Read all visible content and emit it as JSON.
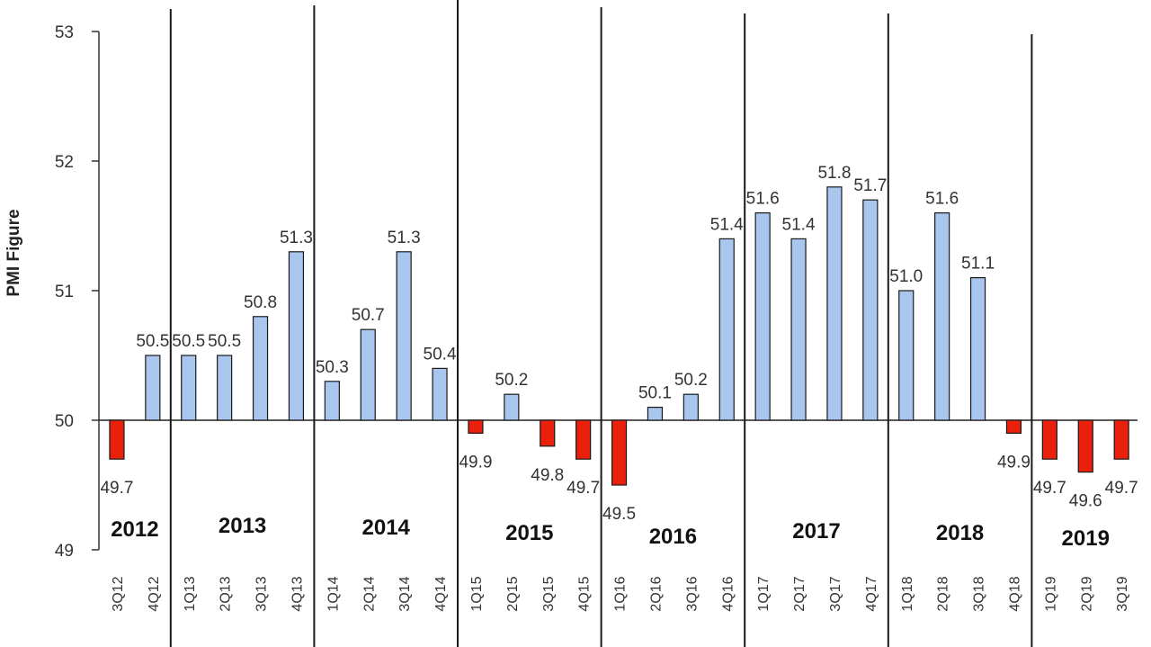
{
  "chart_data": {
    "type": "bar",
    "ylabel": "PMI Figure",
    "ylim": [
      49,
      53
    ],
    "yticks": [
      "49",
      "50",
      "51",
      "52",
      "53"
    ],
    "baseline": 50,
    "categories": [
      "3Q12",
      "4Q12",
      "1Q13",
      "2Q13",
      "3Q13",
      "4Q13",
      "1Q14",
      "2Q14",
      "3Q14",
      "4Q14",
      "1Q15",
      "2Q15",
      "3Q15",
      "4Q15",
      "1Q16",
      "2Q16",
      "3Q16",
      "4Q16",
      "1Q17",
      "2Q17",
      "3Q17",
      "4Q17",
      "1Q18",
      "2Q18",
      "3Q18",
      "4Q18",
      "1Q19",
      "2Q19",
      "3Q19"
    ],
    "values": [
      49.7,
      50.5,
      50.5,
      50.5,
      50.8,
      51.3,
      50.3,
      50.7,
      51.3,
      50.4,
      49.9,
      50.2,
      49.8,
      49.7,
      49.5,
      50.1,
      50.2,
      51.4,
      51.6,
      51.4,
      51.8,
      51.7,
      51.0,
      51.6,
      51.1,
      49.9,
      49.7,
      49.6,
      49.7
    ],
    "value_labels": [
      "49.7",
      "50.5",
      "50.5",
      "50.5",
      "50.8",
      "51.3",
      "50.3",
      "50.7",
      "51.3",
      "50.4",
      "49.9",
      "50.2",
      "49.8",
      "49.7",
      "49.5",
      "50.1",
      "50.2",
      "51.4",
      "51.6",
      "51.4",
      "51.8",
      "51.7",
      "51.0",
      "51.6",
      "51.1",
      "49.9",
      "49.7",
      "49.6",
      "49.7"
    ],
    "years": [
      {
        "label": "2012",
        "start": 0,
        "count": 2
      },
      {
        "label": "2013",
        "start": 2,
        "count": 4
      },
      {
        "label": "2014",
        "start": 6,
        "count": 4
      },
      {
        "label": "2015",
        "start": 10,
        "count": 4
      },
      {
        "label": "2016",
        "start": 14,
        "count": 4
      },
      {
        "label": "2017",
        "start": 18,
        "count": 4
      },
      {
        "label": "2018",
        "start": 22,
        "count": 4
      },
      {
        "label": "2019",
        "start": 26,
        "count": 3
      }
    ],
    "colors": {
      "above": "#a9c6ee",
      "below": "#e8200c",
      "outline": "#1a1a1a"
    },
    "grid": false
  }
}
